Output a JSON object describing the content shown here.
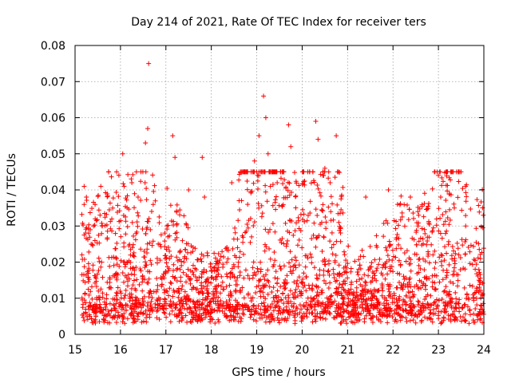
{
  "chart_data": {
    "type": "scatter",
    "title": "Day 214 of 2021, Rate Of TEC Index for receiver ters",
    "xlabel": "GPS time / hours",
    "ylabel": "ROTI / TECUs",
    "xlim": [
      15,
      24
    ],
    "ylim": [
      0,
      0.08
    ],
    "xticks": [
      "15",
      "16",
      "17",
      "18",
      "19",
      "20",
      "21",
      "22",
      "23",
      "24"
    ],
    "yticks": [
      "0",
      "0.01",
      "0.02",
      "0.03",
      "0.04",
      "0.05",
      "0.06",
      "0.07",
      "0.08"
    ],
    "grid": true,
    "marker": "+",
    "color": "#ff0000",
    "series": [
      {
        "x": [
          15.2,
          15.25,
          15.3,
          15.55,
          15.6,
          16.05,
          16.08,
          16.25,
          16.45,
          16.55,
          16.6,
          16.62,
          17.15,
          17.2,
          17.5,
          17.8,
          17.85,
          18.45,
          18.8,
          18.95,
          19.05,
          19.15,
          19.2,
          19.25,
          19.3,
          19.45,
          19.7,
          19.75,
          20.3,
          20.35,
          20.5,
          20.75,
          20.8,
          21.4,
          21.9,
          22.1,
          22.55,
          23.0,
          23.05,
          23.35,
          23.6,
          23.9
        ],
        "y": [
          0.041,
          0.038,
          0.028,
          0.033,
          0.03,
          0.05,
          0.041,
          0.042,
          0.045,
          0.053,
          0.057,
          0.075,
          0.055,
          0.049,
          0.04,
          0.049,
          0.038,
          0.042,
          0.036,
          0.048,
          0.055,
          0.066,
          0.06,
          0.05,
          0.041,
          0.042,
          0.058,
          0.052,
          0.059,
          0.054,
          0.046,
          0.055,
          0.045,
          0.038,
          0.04,
          0.036,
          0.03,
          0.044,
          0.038,
          0.035,
          0.03,
          0.013
        ]
      }
    ]
  }
}
